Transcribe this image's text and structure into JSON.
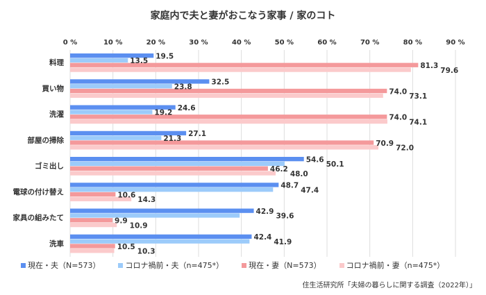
{
  "chart_data": {
    "type": "bar",
    "orientation": "horizontal",
    "title": "家庭内で夫と妻がおこなう家事 / 家のコト",
    "categories": [
      "料理",
      "買い物",
      "洗濯",
      "部屋の掃除",
      "ゴミ出し",
      "電球の付け替え",
      "家具の組みたて",
      "洗車"
    ],
    "series": [
      {
        "name": "現在・夫（N=573）",
        "color": "#5B8FF0",
        "values": [
          19.5,
          32.5,
          24.6,
          27.1,
          54.6,
          48.7,
          42.9,
          42.4
        ]
      },
      {
        "name": "コロナ禍前・夫（n=475*）",
        "color": "#9CCBFA",
        "values": [
          13.5,
          23.8,
          19.2,
          21.3,
          50.1,
          47.4,
          39.6,
          41.9
        ]
      },
      {
        "name": "現在・妻（N=573）",
        "color": "#F4999B",
        "values": [
          81.3,
          74.0,
          74.0,
          70.9,
          46.2,
          10.6,
          9.9,
          10.5
        ]
      },
      {
        "name": "コロナ禍前・妻（n=475*）",
        "color": "#FBCACB",
        "values": [
          79.6,
          73.1,
          74.1,
          72.0,
          48.0,
          14.3,
          10.9,
          10.3
        ]
      }
    ],
    "xlim": [
      0,
      90
    ],
    "xticks": [
      "0 %",
      "10 %",
      "20 %",
      "30 %",
      "40 %",
      "50 %",
      "60 %",
      "70 %",
      "80 %",
      "90 %"
    ],
    "grid": true,
    "legend": "bottom",
    "source": "住生活研究所「夫婦の暮らしに関する調査（2022年）」"
  }
}
